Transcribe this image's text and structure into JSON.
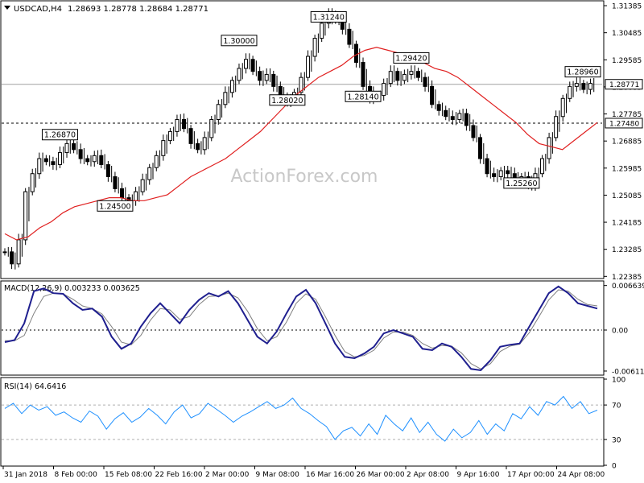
{
  "header": {
    "symbol_text": "USDCAD,H4",
    "ohlc_text": "1.28693 1.28778 1.28684 1.28771",
    "watermark": "ActionForex.com"
  },
  "chart_data": [
    {
      "type": "candlestick",
      "name": "price",
      "symbol": "USDCAD",
      "timeframe": "H4",
      "ylim": [
        1.2234,
        1.3152
      ],
      "yticks": [
        "1.31385",
        "1.30485",
        "1.29585",
        "1.28685",
        "1.27785",
        "1.26885",
        "1.25985",
        "1.25085",
        "1.24185",
        "1.23285",
        "1.22385"
      ],
      "last_price": "1.28771",
      "hline": {
        "value": 1.2748,
        "label": "1.27480",
        "style": "dashed"
      },
      "price_line": 1.28771,
      "close_series": [
        1.232,
        1.228,
        1.236,
        1.252,
        1.258,
        1.263,
        1.262,
        1.261,
        1.265,
        1.268,
        1.266,
        1.263,
        1.262,
        1.264,
        1.261,
        1.257,
        1.253,
        1.25,
        1.249,
        1.252,
        1.256,
        1.26,
        1.264,
        1.269,
        1.272,
        1.276,
        1.273,
        1.268,
        1.266,
        1.27,
        1.276,
        1.281,
        1.285,
        1.289,
        1.293,
        1.296,
        1.292,
        1.289,
        1.291,
        1.287,
        1.283,
        1.282,
        1.285,
        1.29,
        1.297,
        1.303,
        1.308,
        1.311,
        1.309,
        1.306,
        1.301,
        1.295,
        1.287,
        1.283,
        1.284,
        1.288,
        1.292,
        1.289,
        1.291,
        1.292,
        1.29,
        1.287,
        1.281,
        1.279,
        1.277,
        1.276,
        1.278,
        1.274,
        1.27,
        1.263,
        1.258,
        1.257,
        1.259,
        1.258,
        1.255,
        1.257,
        1.254,
        1.258,
        1.263,
        1.27,
        1.277,
        1.283,
        1.287,
        1.288,
        1.286,
        1.288
      ],
      "ma_series": [
        1.238,
        1.236,
        1.237,
        1.24,
        1.242,
        1.245,
        1.247,
        1.248,
        1.249,
        1.25,
        1.25,
        1.249,
        1.249,
        1.25,
        1.251,
        1.254,
        1.257,
        1.259,
        1.261,
        1.263,
        1.266,
        1.269,
        1.272,
        1.276,
        1.28,
        1.284,
        1.287,
        1.29,
        1.292,
        1.294,
        1.297,
        1.299,
        1.3,
        1.299,
        1.298,
        1.297,
        1.295,
        1.293,
        1.292,
        1.29,
        1.287,
        1.284,
        1.281,
        1.278,
        1.275,
        1.271,
        1.268,
        1.267,
        1.266,
        1.269,
        1.272,
        1.275
      ],
      "ma_start_index": 34,
      "annotations": [
        {
          "label": "1.31240",
          "value": 1.3124,
          "index": 47
        },
        {
          "label": "1.30000",
          "value": 1.3,
          "index": 34
        },
        {
          "label": "1.28020",
          "value": 1.2802,
          "index": 41
        },
        {
          "label": "1.29420",
          "value": 1.2942,
          "index": 59
        },
        {
          "label": "1.28140",
          "value": 1.2814,
          "index": 52
        },
        {
          "label": "1.28960",
          "value": 1.2896,
          "index": 84
        },
        {
          "label": "1.26870",
          "value": 1.2687,
          "index": 8
        },
        {
          "label": "1.24500",
          "value": 1.245,
          "index": 16
        },
        {
          "label": "1.25260",
          "value": 1.2526,
          "index": 75
        }
      ]
    },
    {
      "type": "line",
      "name": "MACD",
      "label_text": "MACD(12,26,9) 0.003233 0.003625",
      "ylim": [
        -0.0066,
        0.0072
      ],
      "yticks": [
        "0.006639",
        "0.00",
        "-0.006114"
      ],
      "zero_line": 0.0,
      "series": [
        {
          "name": "MACD",
          "color": "#1f1f8f",
          "values": [
            -0.0018,
            -0.0015,
            0.001,
            0.0058,
            0.0062,
            0.0055,
            0.0054,
            0.004,
            0.003,
            0.0032,
            0.002,
            -0.001,
            -0.0028,
            -0.002,
            0.0005,
            0.0025,
            0.004,
            0.0025,
            0.001,
            0.003,
            0.0045,
            0.0055,
            0.005,
            0.0058,
            0.004,
            0.0015,
            -0.001,
            -0.002,
            -0.0002,
            0.0025,
            0.005,
            0.006,
            0.004,
            0.001,
            -0.002,
            -0.004,
            -0.0042,
            -0.0035,
            -0.0025,
            -0.0005,
            0.0,
            -0.0005,
            -0.001,
            -0.0028,
            -0.003,
            -0.002,
            -0.0025,
            -0.004,
            -0.0058,
            -0.006,
            -0.0045,
            -0.0025,
            -0.0022,
            -0.002,
            0.0005,
            0.003,
            0.0055,
            0.0065,
            0.0055,
            0.004,
            0.0036,
            0.0032
          ]
        },
        {
          "name": "Signal",
          "color": "#808080",
          "values": [
            -0.0016,
            -0.0016,
            -0.0008,
            0.0025,
            0.005,
            0.0055,
            0.0054,
            0.0046,
            0.0036,
            0.0032,
            0.0024,
            0.0005,
            -0.0018,
            -0.0022,
            -0.0008,
            0.0015,
            0.0032,
            0.003,
            0.0016,
            0.002,
            0.0038,
            0.005,
            0.0051,
            0.0055,
            0.0048,
            0.0028,
            0.0002,
            -0.0016,
            -0.001,
            0.0012,
            0.004,
            0.0054,
            0.0046,
            0.002,
            -0.0008,
            -0.0032,
            -0.004,
            -0.0038,
            -0.003,
            -0.0012,
            -0.0003,
            -0.0003,
            -0.0008,
            -0.002,
            -0.0027,
            -0.0023,
            -0.0024,
            -0.0034,
            -0.005,
            -0.0058,
            -0.005,
            -0.0032,
            -0.0024,
            -0.0021,
            -0.0004,
            0.002,
            0.0045,
            0.006,
            0.0058,
            0.0046,
            0.0038,
            0.0036
          ]
        }
      ]
    },
    {
      "type": "line",
      "name": "RSI",
      "label_text": "RSI(14) 64.6416",
      "ylim": [
        0,
        100
      ],
      "yticks": [
        "100",
        "70",
        "30",
        "0"
      ],
      "levels": [
        70,
        30
      ],
      "series": [
        {
          "name": "RSI",
          "color": "#1e90ff",
          "values": [
            66,
            72,
            60,
            70,
            64,
            68,
            58,
            62,
            55,
            50,
            63,
            57,
            42,
            54,
            61,
            50,
            56,
            66,
            58,
            48,
            62,
            70,
            55,
            60,
            72,
            65,
            58,
            50,
            57,
            62,
            68,
            74,
            66,
            70,
            78,
            66,
            60,
            52,
            45,
            30,
            40,
            44,
            34,
            48,
            36,
            58,
            48,
            40,
            55,
            38,
            50,
            36,
            28,
            42,
            32,
            38,
            52,
            36,
            48,
            40,
            60,
            54,
            68,
            58,
            74,
            70,
            80,
            66,
            74,
            60,
            64
          ]
        }
      ]
    }
  ],
  "x_axis": {
    "labels": [
      "31 Jan 2018",
      "8 Feb 00:00",
      "15 Feb 08:00",
      "22 Feb 16:00",
      "2 Mar 00:00",
      "9 Mar 08:00",
      "16 Mar 16:00",
      "26 Mar 00:00",
      "2 Apr 08:00",
      "9 Apr 16:00",
      "17 Apr 00:00",
      "24 Apr 08:00"
    ]
  },
  "colors": {
    "candle": "#000000",
    "ma": "#e02020",
    "macd": "#1f1f8f",
    "signal": "#808080",
    "rsi": "#1e90ff",
    "frame": "#000000",
    "grid_dashed": "#b0b0b0"
  }
}
